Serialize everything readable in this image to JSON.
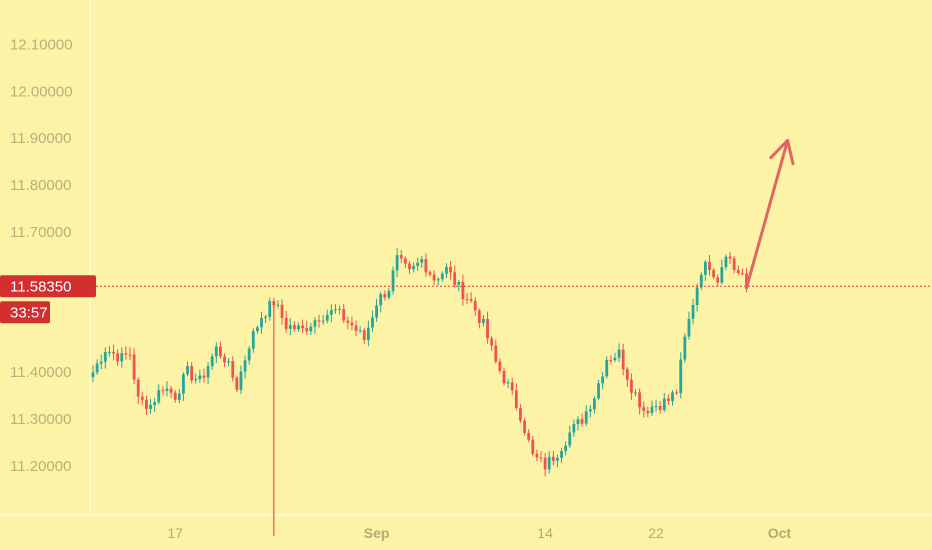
{
  "chart_data": {
    "type": "candlestick",
    "y_ticks": [
      "12.10000",
      "12.00000",
      "11.90000",
      "11.80000",
      "11.70000",
      "11.40000",
      "11.30000",
      "11.20000"
    ],
    "y_tick_values": [
      12.1,
      12.0,
      11.9,
      11.8,
      11.7,
      11.4,
      11.3,
      11.2
    ],
    "ylim": [
      11.095,
      12.195
    ],
    "x_ticks": [
      {
        "label": "17",
        "bold": false,
        "index": 20
      },
      {
        "label": "Sep",
        "bold": true,
        "index": 69
      },
      {
        "label": "14",
        "bold": false,
        "index": 110
      },
      {
        "label": "22",
        "bold": false,
        "index": 137
      },
      {
        "label": "Oct",
        "bold": true,
        "index": 167
      }
    ],
    "current_price": {
      "value": 11.5835,
      "label": "11.58350",
      "countdown": "33:57"
    },
    "colors": {
      "up": "#26a69a",
      "down": "#ef5350",
      "price_line": "#e53935",
      "badge": "#d32f2f",
      "arrow": "#e06666",
      "background": "#fdf3a6"
    },
    "anchors": [
      [
        0,
        11.4
      ],
      [
        3,
        11.45
      ],
      [
        7,
        11.43
      ],
      [
        9,
        11.44
      ],
      [
        11,
        11.34
      ],
      [
        14,
        11.33
      ],
      [
        17,
        11.37
      ],
      [
        20,
        11.35
      ],
      [
        23,
        11.4
      ],
      [
        26,
        11.38
      ],
      [
        30,
        11.45
      ],
      [
        32,
        11.43
      ],
      [
        35,
        11.37
      ],
      [
        38,
        11.46
      ],
      [
        41,
        11.52
      ],
      [
        44,
        11.55
      ],
      [
        47,
        11.5
      ],
      [
        51,
        11.49
      ],
      [
        55,
        11.52
      ],
      [
        59,
        11.53
      ],
      [
        63,
        11.5
      ],
      [
        66,
        11.47
      ],
      [
        69,
        11.55
      ],
      [
        72,
        11.58
      ],
      [
        74,
        11.64
      ],
      [
        77,
        11.61
      ],
      [
        80,
        11.64
      ],
      [
        83,
        11.6
      ],
      [
        86,
        11.62
      ],
      [
        89,
        11.58
      ],
      [
        92,
        11.55
      ],
      [
        95,
        11.5
      ],
      [
        98,
        11.42
      ],
      [
        101,
        11.37
      ],
      [
        104,
        11.31
      ],
      [
        107,
        11.22
      ],
      [
        110,
        11.2
      ],
      [
        113,
        11.23
      ],
      [
        116,
        11.27
      ],
      [
        119,
        11.3
      ],
      [
        122,
        11.35
      ],
      [
        125,
        11.43
      ],
      [
        128,
        11.44
      ],
      [
        131,
        11.37
      ],
      [
        134,
        11.32
      ],
      [
        137,
        11.33
      ],
      [
        140,
        11.34
      ],
      [
        142,
        11.36
      ],
      [
        144,
        11.47
      ],
      [
        146,
        11.55
      ],
      [
        148,
        11.62
      ],
      [
        150,
        11.63
      ],
      [
        152,
        11.6
      ],
      [
        154,
        11.66
      ],
      [
        156,
        11.62
      ],
      [
        158,
        11.61
      ],
      [
        159,
        11.5835
      ]
    ],
    "bar_count": 160,
    "wick": {
      "index": 44,
      "low": 11.05
    },
    "arrow": {
      "from": [
        159,
        11.58
      ],
      "to": [
        169,
        11.895
      ]
    }
  }
}
